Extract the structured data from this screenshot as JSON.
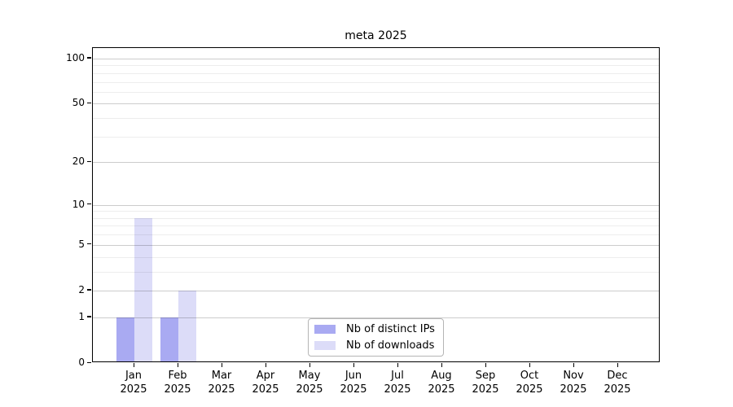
{
  "figure": {
    "background": "#ffffff"
  },
  "chart_data": {
    "type": "bar",
    "title": "meta 2025",
    "categories": [
      "Jan 2025",
      "Feb 2025",
      "Mar 2025",
      "Apr 2025",
      "May 2025",
      "Jun 2025",
      "Jul 2025",
      "Aug 2025",
      "Sep 2025",
      "Oct 2025",
      "Nov 2025",
      "Dec 2025"
    ],
    "series": [
      {
        "name": "Nb of distinct IPs",
        "color": "#a9aaf2",
        "values": [
          1,
          1,
          0,
          0,
          0,
          0,
          0,
          0,
          0,
          0,
          0,
          0
        ]
      },
      {
        "name": "Nb of downloads",
        "color": "#dcdcf8",
        "values": [
          8,
          2,
          0,
          0,
          0,
          0,
          0,
          0,
          0,
          0,
          0,
          0
        ]
      }
    ],
    "xlabel": "",
    "ylabel": "",
    "yscale": "log1p",
    "y_tick_values": [
      0,
      1,
      2,
      5,
      10,
      20,
      50,
      100
    ],
    "y_minor_gridlines": [
      3,
      4,
      6,
      7,
      8,
      9,
      30,
      40,
      60,
      70,
      80,
      90
    ],
    "ylim": [
      0,
      118
    ],
    "grid": "horizontal",
    "legend": {
      "position": "inside-bottom-center",
      "entries": [
        "Nb of distinct IPs",
        "Nb of downloads"
      ]
    }
  }
}
